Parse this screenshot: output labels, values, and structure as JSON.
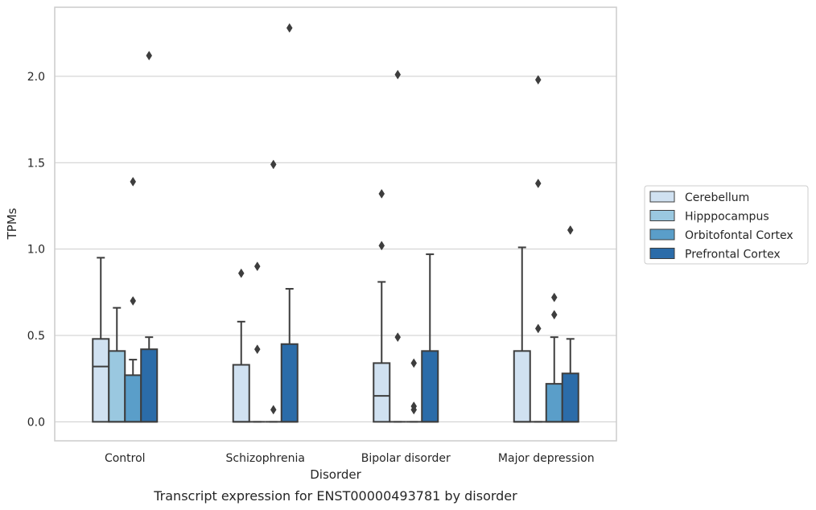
{
  "chart_data": {
    "type": "box",
    "caption": "Transcript expression for ENST00000493781 by disorder",
    "xlabel": "Disorder",
    "ylabel": "TPMs",
    "ylim": [
      -0.11,
      2.4
    ],
    "yticks": [
      0.0,
      0.5,
      1.0,
      1.5,
      2.0
    ],
    "ytick_labels": [
      "0.0",
      "0.5",
      "1.0",
      "1.5",
      "2.0"
    ],
    "grid": "horizontal",
    "legend_position": "right",
    "categories": [
      "Control",
      "Schizophrenia",
      "Bipolar disorder",
      "Major depression"
    ],
    "series": [
      {
        "name": "Cerebellum",
        "color": "#d0e1f1",
        "boxes": [
          {
            "q1": 0.0,
            "median": 0.32,
            "q3": 0.48,
            "whisker_low": 0.0,
            "whisker_high": 0.95,
            "outliers": []
          },
          {
            "q1": 0.0,
            "median": 0.0,
            "q3": 0.33,
            "whisker_low": 0.0,
            "whisker_high": 0.58,
            "outliers": [
              0.86
            ]
          },
          {
            "q1": 0.0,
            "median": 0.15,
            "q3": 0.34,
            "whisker_low": 0.0,
            "whisker_high": 0.81,
            "outliers": [
              1.02,
              1.32
            ]
          },
          {
            "q1": 0.0,
            "median": 0.0,
            "q3": 0.41,
            "whisker_low": 0.0,
            "whisker_high": 1.01,
            "outliers": []
          }
        ]
      },
      {
        "name": "Hipppocampus",
        "color": "#9ac8e0",
        "boxes": [
          {
            "q1": 0.0,
            "median": 0.0,
            "q3": 0.41,
            "whisker_low": 0.0,
            "whisker_high": 0.66,
            "outliers": []
          },
          {
            "q1": 0.0,
            "median": 0.0,
            "q3": 0.0,
            "whisker_low": 0.0,
            "whisker_high": 0.0,
            "outliers": [
              0.42,
              0.9
            ]
          },
          {
            "q1": 0.0,
            "median": 0.0,
            "q3": 0.0,
            "whisker_low": 0.0,
            "whisker_high": 0.0,
            "outliers": [
              0.49,
              2.01
            ]
          },
          {
            "q1": 0.0,
            "median": 0.0,
            "q3": 0.0,
            "whisker_low": 0.0,
            "whisker_high": 0.0,
            "outliers": [
              0.54,
              1.38,
              1.98
            ]
          }
        ]
      },
      {
        "name": "Orbitofontal Cortex",
        "color": "#5a9ec9",
        "boxes": [
          {
            "q1": 0.0,
            "median": 0.0,
            "q3": 0.27,
            "whisker_low": 0.0,
            "whisker_high": 0.36,
            "outliers": [
              0.7,
              1.39
            ]
          },
          {
            "q1": 0.0,
            "median": 0.0,
            "q3": 0.0,
            "whisker_low": 0.0,
            "whisker_high": 0.0,
            "outliers": [
              0.07,
              1.49
            ]
          },
          {
            "q1": 0.0,
            "median": 0.0,
            "q3": 0.0,
            "whisker_low": 0.0,
            "whisker_high": 0.0,
            "outliers": [
              0.07,
              0.09,
              0.34
            ]
          },
          {
            "q1": 0.0,
            "median": 0.0,
            "q3": 0.22,
            "whisker_low": 0.0,
            "whisker_high": 0.49,
            "outliers": [
              0.62,
              0.72
            ]
          }
        ]
      },
      {
        "name": "Prefrontal Cortex",
        "color": "#2b6ca9",
        "boxes": [
          {
            "q1": 0.0,
            "median": 0.0,
            "q3": 0.42,
            "whisker_low": 0.0,
            "whisker_high": 0.49,
            "outliers": [
              2.12
            ]
          },
          {
            "q1": 0.0,
            "median": 0.0,
            "q3": 0.45,
            "whisker_low": 0.0,
            "whisker_high": 0.77,
            "outliers": [
              2.28
            ]
          },
          {
            "q1": 0.0,
            "median": 0.0,
            "q3": 0.41,
            "whisker_low": 0.0,
            "whisker_high": 0.97,
            "outliers": []
          },
          {
            "q1": 0.0,
            "median": 0.0,
            "q3": 0.28,
            "whisker_low": 0.0,
            "whisker_high": 0.48,
            "outliers": [
              1.11
            ]
          }
        ]
      }
    ]
  }
}
